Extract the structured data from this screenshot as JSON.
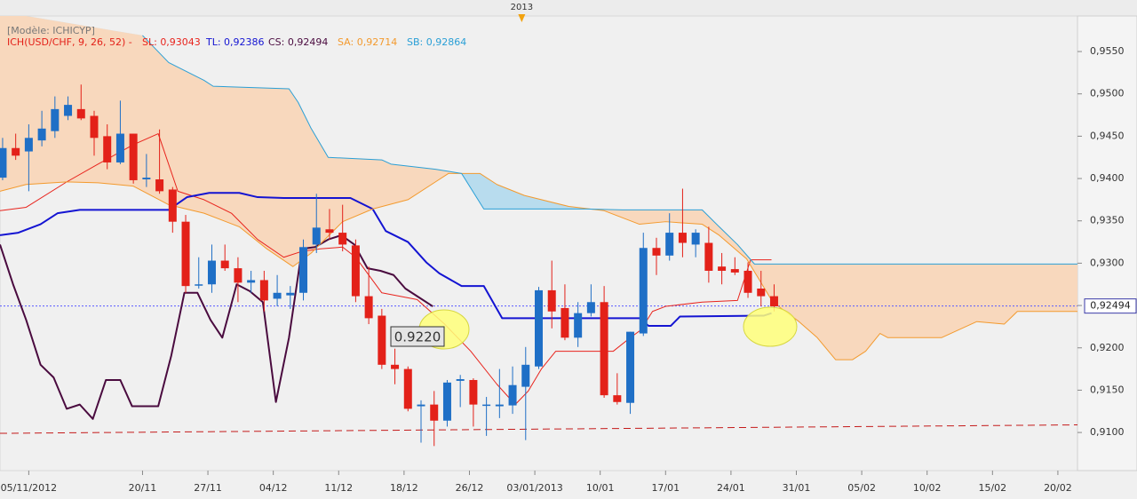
{
  "chart_data": {
    "type": "candlestick",
    "model_label": "[Modèle: ICHICYP]",
    "indicator_label": "ICH(USD/CHF, 9, 26, 52) -",
    "up_color": "#1f6fc6",
    "down_color": "#e32119",
    "x": [
      0,
      1,
      2,
      3,
      4,
      5,
      6,
      7,
      8,
      9,
      10,
      11,
      12,
      13,
      14,
      15,
      16,
      17,
      18,
      19,
      20,
      21,
      22,
      23,
      24,
      25,
      26,
      27,
      28,
      29,
      30,
      31,
      32,
      33,
      34,
      35,
      36,
      37,
      38,
      39,
      40,
      41,
      42,
      43,
      44,
      45,
      46,
      47,
      48,
      49,
      50,
      51,
      52,
      53,
      54,
      55,
      56,
      57,
      58,
      59
    ],
    "open": [
      0.9401,
      0.9436,
      0.9432,
      0.9445,
      0.9456,
      0.9474,
      0.9482,
      0.9474,
      0.945,
      0.9419,
      0.9453,
      0.9399,
      0.9399,
      0.9387,
      0.9349,
      0.9274,
      0.9275,
      0.9303,
      0.9294,
      0.9277,
      0.928,
      0.9258,
      0.9262,
      0.9265,
      0.9322,
      0.934,
      0.9336,
      0.9321,
      0.9261,
      0.9238,
      0.918,
      0.9175,
      0.9131,
      0.9133,
      0.9114,
      0.9161,
      0.9162,
      0.9132,
      0.9131,
      0.9132,
      0.9154,
      0.9178,
      0.9268,
      0.9247,
      0.9212,
      0.9241,
      0.9254,
      0.9144,
      0.9135,
      0.9217,
      0.9318,
      0.9309,
      0.9336,
      0.9322,
      0.9324,
      0.9296,
      0.9293,
      0.9291,
      0.927,
      0.9261
    ],
    "high": [
      0.9448,
      0.9453,
      0.9464,
      0.948,
      0.9497,
      0.9497,
      0.9511,
      0.948,
      0.9464,
      0.9492,
      0.9453,
      0.9429,
      0.9458,
      0.939,
      0.9357,
      0.9307,
      0.9322,
      0.9322,
      0.9307,
      0.9291,
      0.9291,
      0.9286,
      0.9273,
      0.9328,
      0.9382,
      0.9364,
      0.9369,
      0.9328,
      0.9296,
      0.9246,
      0.9199,
      0.9178,
      0.9138,
      0.9149,
      0.9162,
      0.9168,
      0.9164,
      0.9142,
      0.9175,
      0.9178,
      0.9201,
      0.9272,
      0.9303,
      0.9275,
      0.9254,
      0.9275,
      0.9273,
      0.917,
      0.9219,
      0.9336,
      0.933,
      0.9359,
      0.9388,
      0.934,
      0.9343,
      0.9312,
      0.9307,
      0.9301,
      0.9291,
      0.9275
    ],
    "low": [
      0.9398,
      0.9422,
      0.9385,
      0.9438,
      0.9448,
      0.9469,
      0.9469,
      0.9427,
      0.9411,
      0.9417,
      0.9394,
      0.939,
      0.9382,
      0.9336,
      0.9265,
      0.927,
      0.9265,
      0.9291,
      0.9254,
      0.9265,
      0.9243,
      0.9249,
      0.9246,
      0.9256,
      0.9312,
      0.9328,
      0.9314,
      0.9254,
      0.9228,
      0.9175,
      0.9157,
      0.9125,
      0.9088,
      0.9084,
      0.9107,
      0.913,
      0.9107,
      0.9096,
      0.9117,
      0.9122,
      0.9091,
      0.9175,
      0.9223,
      0.9209,
      0.9201,
      0.9237,
      0.9141,
      0.9133,
      0.9122,
      0.9214,
      0.9286,
      0.9303,
      0.9307,
      0.9307,
      0.9277,
      0.9275,
      0.9286,
      0.9259,
      0.9249,
      0.9243
    ],
    "close": [
      0.9436,
      0.9427,
      0.9448,
      0.9459,
      0.9482,
      0.9487,
      0.9471,
      0.9448,
      0.9419,
      0.9453,
      0.9398,
      0.9401,
      0.9385,
      0.9349,
      0.9273,
      0.9275,
      0.9303,
      0.9294,
      0.9277,
      0.928,
      0.9256,
      0.9265,
      0.9265,
      0.9319,
      0.9342,
      0.9336,
      0.9322,
      0.9261,
      0.9235,
      0.918,
      0.9175,
      0.9128,
      0.9133,
      0.9114,
      0.9159,
      0.9163,
      0.9133,
      0.9133,
      0.9133,
      0.9156,
      0.918,
      0.9268,
      0.9243,
      0.9212,
      0.9241,
      0.9254,
      0.9144,
      0.9136,
      0.9219,
      0.9318,
      0.9309,
      0.9336,
      0.9324,
      0.9336,
      0.9291,
      0.9291,
      0.9289,
      0.9265,
      0.9261,
      0.9249
    ],
    "lines": [
      {
        "name": "SL: 0,93043",
        "color": "#e8231c",
        "width": 1,
        "x": [
          -0.2,
          1.8,
          4.9,
          7.3,
          10.0,
          11.9,
          13.4,
          15.4,
          17.5,
          19.5,
          21.5,
          22.9,
          24.3,
          26.0,
          27.0,
          29.0,
          31.7,
          33.8,
          35.8,
          37.8,
          39.2,
          40.2,
          41.2,
          42.3,
          44.6,
          46.7,
          48.0,
          48.8,
          49.7,
          50.7,
          53.5,
          56.2,
          57.2,
          58.8
        ],
        "values": [
          0.9362,
          0.9366,
          0.9396,
          0.9417,
          0.944,
          0.9453,
          0.9385,
          0.9375,
          0.9359,
          0.9328,
          0.9307,
          0.9314,
          0.9317,
          0.9319,
          0.9307,
          0.9265,
          0.9257,
          0.9228,
          0.9196,
          0.9157,
          0.9133,
          0.9149,
          0.9175,
          0.9196,
          0.9196,
          0.9196,
          0.9212,
          0.9221,
          0.9243,
          0.9249,
          0.9254,
          0.9256,
          0.9304,
          0.9304
        ]
      },
      {
        "name": "TL: 0,92386",
        "color": "#1414d2",
        "width": 2,
        "x": [
          -0.2,
          1.2,
          2.9,
          4.2,
          5.9,
          12.7,
          14.1,
          15.8,
          18.1,
          19.5,
          21.5,
          26.6,
          28.3,
          29.3,
          31.0,
          32.4,
          33.4,
          35.1,
          36.8,
          38.2,
          39.9,
          48.7,
          49.4,
          51.1,
          51.8,
          58.2,
          58.8
        ],
        "values": [
          0.9333,
          0.9336,
          0.9346,
          0.9359,
          0.9363,
          0.9363,
          0.9378,
          0.9383,
          0.9383,
          0.9378,
          0.9377,
          0.9377,
          0.9364,
          0.9338,
          0.9325,
          0.9301,
          0.9288,
          0.9273,
          0.9273,
          0.9235,
          0.9235,
          0.9235,
          0.9226,
          0.9226,
          0.9237,
          0.9238,
          0.9241
        ]
      },
      {
        "name": "CS: 0,92494",
        "color": "#4a0b3f",
        "width": 2,
        "x": [
          -0.2,
          0.8,
          1.8,
          2.9,
          3.9,
          4.9,
          5.9,
          6.9,
          7.9,
          9.0,
          9.9,
          11.9,
          12.9,
          13.9,
          14.9,
          15.9,
          16.8,
          17.9,
          18.9,
          19.9,
          20.9,
          21.9,
          22.9,
          23.9,
          24.9,
          25.9,
          26.9,
          27.9,
          28.9,
          29.9,
          30.8,
          31.9,
          32.9
        ],
        "values": [
          0.9322,
          0.9275,
          0.9233,
          0.918,
          0.9165,
          0.9128,
          0.9133,
          0.9116,
          0.9162,
          0.9162,
          0.9131,
          0.9131,
          0.9191,
          0.9265,
          0.9265,
          0.9233,
          0.9212,
          0.9275,
          0.9267,
          0.9254,
          0.9136,
          0.9212,
          0.9317,
          0.9319,
          0.9328,
          0.9333,
          0.9322,
          0.9294,
          0.9291,
          0.9286,
          0.927,
          0.9259,
          0.9249
        ]
      },
      {
        "name": "SA: 0,92714",
        "color": "#f39a2e",
        "width": 1,
        "x": [
          -0.2,
          1.8,
          4.9,
          7.3,
          10.0,
          12.7,
          15.4,
          18.1,
          20.2,
          22.2,
          23.6,
          26.0,
          28.3,
          31.0,
          33.1,
          34.1,
          36.5,
          37.8,
          39.9,
          43.3,
          46.0,
          48.7,
          50.7,
          53.5,
          54.8,
          56.9,
          58.9,
          60.9,
          62.3,
          63.7,
          65.0,
          66.0,
          67.1,
          67.7,
          71.8,
          74.5,
          76.6,
          77.6,
          82.2
        ],
        "values": [
          0.9385,
          0.9393,
          0.9396,
          0.9395,
          0.9391,
          0.9369,
          0.9359,
          0.9343,
          0.9317,
          0.9296,
          0.9312,
          0.9349,
          0.9364,
          0.9375,
          0.9396,
          0.9406,
          0.9406,
          0.9393,
          0.938,
          0.9367,
          0.9362,
          0.9346,
          0.9349,
          0.9346,
          0.9333,
          0.9305,
          0.9254,
          0.9231,
          0.9212,
          0.9186,
          0.9186,
          0.9196,
          0.9217,
          0.9212,
          0.9212,
          0.9231,
          0.9228,
          0.9243,
          0.9243
        ]
      },
      {
        "name": "SB: 0,92864",
        "color": "#2a9fd6",
        "width": 1,
        "x": [
          10.7,
          12.7,
          15.4,
          16.1,
          21.9,
          22.6,
          23.6,
          24.9,
          29.0,
          29.7,
          33.1,
          35.1,
          36.8,
          44.6,
          47.4,
          53.5,
          54.8,
          56.2,
          57.5,
          82.2
        ],
        "values": [
          0.9569,
          0.9537,
          0.9516,
          0.9509,
          0.9506,
          0.949,
          0.9459,
          0.9425,
          0.9422,
          0.9417,
          0.9411,
          0.9406,
          0.9364,
          0.9364,
          0.9363,
          0.9363,
          0.9343,
          0.9322,
          0.9299,
          0.9299
        ]
      }
    ],
    "cloud_colors": {
      "bearish": "#f8d8bd",
      "bullish": "#b8dcee"
    },
    "trendline": {
      "color": "#c41a1a",
      "x": [
        -0.2,
        82.2
      ],
      "values": [
        0.9099,
        0.9109
      ]
    },
    "last_price": {
      "value": 0.92494,
      "label": "0,92494"
    },
    "annotation": "0.9220",
    "year_marker": {
      "value": 39.7,
      "label": "2013"
    },
    "xlim": [
      -0.2,
      82.2
    ],
    "ylim": [
      0.9055,
      0.9592
    ],
    "xticks": [
      {
        "value": 2.0,
        "label": "05/11/2012"
      },
      {
        "value": 10.7,
        "label": "20/11"
      },
      {
        "value": 15.7,
        "label": "27/11"
      },
      {
        "value": 20.7,
        "label": "04/12"
      },
      {
        "value": 25.7,
        "label": "11/12"
      },
      {
        "value": 30.7,
        "label": "18/12"
      },
      {
        "value": 35.7,
        "label": "26/12"
      },
      {
        "value": 40.7,
        "label": "03/01/2013"
      },
      {
        "value": 45.7,
        "label": "10/01"
      },
      {
        "value": 50.7,
        "label": "17/01"
      },
      {
        "value": 55.7,
        "label": "24/01"
      },
      {
        "value": 60.7,
        "label": "31/01"
      },
      {
        "value": 65.7,
        "label": "05/02"
      },
      {
        "value": 70.7,
        "label": "10/02"
      },
      {
        "value": 75.7,
        "label": "15/02"
      },
      {
        "value": 80.7,
        "label": "20/02"
      }
    ],
    "yticks": [
      {
        "value": 0.91,
        "label": "0,9100"
      },
      {
        "value": 0.915,
        "label": "0,9150"
      },
      {
        "value": 0.92,
        "label": "0,9200"
      },
      {
        "value": 0.925,
        "label": "0,9250"
      },
      {
        "value": 0.93,
        "label": "0,9300"
      },
      {
        "value": 0.935,
        "label": "0,9350"
      },
      {
        "value": 0.94,
        "label": "0,9400"
      },
      {
        "value": 0.945,
        "label": "0,9450"
      },
      {
        "value": 0.95,
        "label": "0,9500"
      },
      {
        "value": 0.955,
        "label": "0,9550"
      }
    ],
    "grid": false
  }
}
